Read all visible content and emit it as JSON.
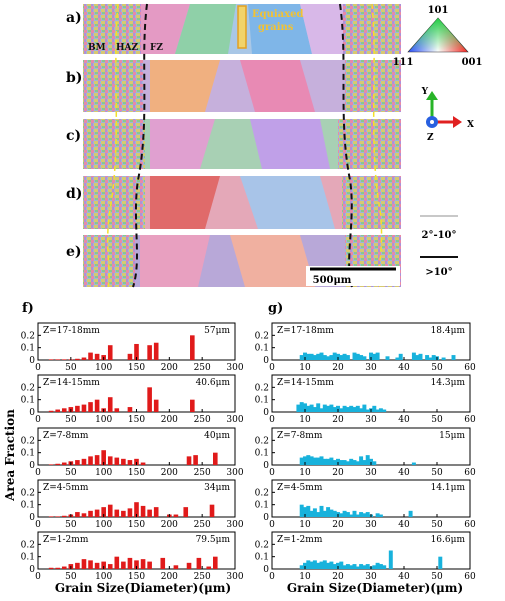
{
  "top_panel": {
    "panel_labels": [
      "a)",
      "b)",
      "c)",
      "d)",
      "e)"
    ],
    "zone_labels": [
      "BM",
      "HAZ",
      "FZ"
    ],
    "equiaxed_label": [
      "Equiaxed",
      "grains"
    ],
    "ipf_legend": {
      "top": "101",
      "left": "111",
      "right": "001"
    },
    "axes": {
      "y": "Y",
      "x": "X",
      "z": "Z"
    },
    "boundary_legend": [
      {
        "label": "2°-10°",
        "color": "#c8c8c8"
      },
      {
        "label": ">10°",
        "color": "#111111"
      }
    ],
    "scale_bar": "500μm"
  },
  "y_axis_title": "Area Fraction",
  "x_axis_title": "Grain Size(Diameter)(μm)",
  "colors": {
    "left_bars": "#e01a1a",
    "right_bars": "#18b2dc",
    "frame": "#000000"
  },
  "chart_data": [
    {
      "type": "bar",
      "title": "f)",
      "xlabel": "Grain Size(Diameter)(μm)",
      "ylabel": "Area Fraction",
      "xlim": [
        0,
        300
      ],
      "ylim": [
        0,
        0.3
      ],
      "xticks": [
        0,
        50,
        100,
        150,
        200,
        250,
        300
      ],
      "yticks": [
        "0",
        "0.1",
        "0.2"
      ],
      "bar_width": 7,
      "series": [
        {
          "name": "Z=17-18mm",
          "annotation": "57μm",
          "x": [
            20,
            30,
            40,
            50,
            60,
            70,
            80,
            90,
            100,
            110,
            140,
            150,
            170,
            180,
            235
          ],
          "values": [
            0.005,
            0.005,
            0.005,
            0.005,
            0.01,
            0.02,
            0.06,
            0.05,
            0.04,
            0.12,
            0.05,
            0.13,
            0.12,
            0.14,
            0.2
          ]
        },
        {
          "name": "Z=14-15mm",
          "annotation": "40.6μm",
          "x": [
            20,
            30,
            40,
            50,
            60,
            70,
            80,
            90,
            100,
            110,
            120,
            140,
            170,
            180,
            235
          ],
          "values": [
            0.01,
            0.02,
            0.03,
            0.04,
            0.05,
            0.06,
            0.08,
            0.1,
            0.03,
            0.12,
            0.03,
            0.04,
            0.2,
            0.1,
            0.1
          ]
        },
        {
          "name": "Z=7-8mm",
          "annotation": "40μm",
          "x": [
            20,
            30,
            40,
            50,
            60,
            70,
            80,
            90,
            100,
            110,
            120,
            130,
            140,
            150,
            160,
            230,
            240,
            270
          ],
          "values": [
            0.005,
            0.01,
            0.02,
            0.03,
            0.04,
            0.05,
            0.07,
            0.08,
            0.12,
            0.07,
            0.06,
            0.05,
            0.04,
            0.05,
            0.02,
            0.07,
            0.08,
            0.1
          ]
        },
        {
          "name": "Z=4-5mm",
          "annotation": "34μm",
          "x": [
            20,
            30,
            40,
            50,
            60,
            70,
            80,
            90,
            100,
            110,
            120,
            130,
            140,
            150,
            160,
            170,
            180,
            200,
            210,
            225,
            265
          ],
          "values": [
            0.005,
            0.005,
            0.01,
            0.02,
            0.04,
            0.03,
            0.05,
            0.06,
            0.08,
            0.1,
            0.06,
            0.05,
            0.07,
            0.12,
            0.09,
            0.06,
            0.08,
            0.02,
            0.02,
            0.08,
            0.1
          ]
        },
        {
          "name": "Z=1-2mm",
          "annotation": "79.5μm",
          "x": [
            20,
            30,
            40,
            50,
            60,
            70,
            80,
            90,
            100,
            110,
            120,
            130,
            140,
            150,
            160,
            170,
            190,
            210,
            230,
            245,
            260,
            270
          ],
          "values": [
            0.01,
            0.01,
            0.02,
            0.04,
            0.05,
            0.08,
            0.07,
            0.05,
            0.06,
            0.04,
            0.1,
            0.06,
            0.09,
            0.07,
            0.08,
            0.06,
            0.09,
            0.03,
            0.05,
            0.09,
            0.02,
            0.1
          ]
        }
      ]
    },
    {
      "type": "bar",
      "title": "g)",
      "xlabel": "Grain Size(Diameter)(μm)",
      "ylabel": "Area Fraction",
      "xlim": [
        0,
        60
      ],
      "ylim": [
        0,
        0.3
      ],
      "xticks": [
        0,
        10,
        20,
        30,
        40,
        50,
        60
      ],
      "yticks": [
        "0",
        "0.1",
        "0.2"
      ],
      "bar_width": 1.2,
      "series": [
        {
          "name": "Z=17-18mm",
          "annotation": "18.4μm",
          "x": [
            9,
            10,
            11,
            12,
            13,
            14,
            15,
            16,
            17,
            18,
            19,
            20,
            21,
            22,
            23,
            25,
            26,
            27,
            28,
            30,
            31,
            32,
            35,
            38,
            39,
            43,
            44,
            45,
            47,
            48,
            49,
            50,
            52,
            55
          ],
          "values": [
            0.04,
            0.06,
            0.05,
            0.05,
            0.04,
            0.05,
            0.06,
            0.04,
            0.03,
            0.04,
            0.06,
            0.05,
            0.04,
            0.05,
            0.04,
            0.06,
            0.05,
            0.04,
            0.03,
            0.06,
            0.05,
            0.06,
            0.03,
            0.02,
            0.05,
            0.06,
            0.04,
            0.05,
            0.04,
            0.02,
            0.04,
            0.03,
            0.02,
            0.04
          ]
        },
        {
          "name": "Z=14-15mm",
          "annotation": "14.3μm",
          "x": [
            8,
            9,
            10,
            11,
            12,
            13,
            14,
            15,
            16,
            17,
            18,
            19,
            20,
            21,
            22,
            23,
            24,
            25,
            26,
            27,
            28,
            29,
            30,
            31,
            32,
            33,
            34
          ],
          "values": [
            0.06,
            0.08,
            0.07,
            0.05,
            0.06,
            0.04,
            0.07,
            0.03,
            0.06,
            0.05,
            0.06,
            0.04,
            0.05,
            0.03,
            0.05,
            0.04,
            0.05,
            0.04,
            0.05,
            0.03,
            0.06,
            0.02,
            0.03,
            0.05,
            0.02,
            0.03,
            0.02
          ]
        },
        {
          "name": "Z=7-8mm",
          "annotation": "15μm",
          "x": [
            9,
            10,
            11,
            12,
            13,
            14,
            15,
            16,
            17,
            18,
            19,
            20,
            21,
            22,
            23,
            24,
            25,
            26,
            27,
            28,
            29,
            30,
            31,
            43
          ],
          "values": [
            0.06,
            0.07,
            0.08,
            0.07,
            0.06,
            0.06,
            0.07,
            0.05,
            0.05,
            0.06,
            0.04,
            0.05,
            0.04,
            0.04,
            0.03,
            0.05,
            0.04,
            0.03,
            0.07,
            0.04,
            0.08,
            0.05,
            0.03,
            0.02
          ]
        },
        {
          "name": "Z=4-5mm",
          "annotation": "14.1μm",
          "x": [
            9,
            10,
            11,
            12,
            13,
            14,
            15,
            16,
            17,
            18,
            19,
            20,
            21,
            22,
            23,
            24,
            25,
            26,
            27,
            28,
            29,
            30,
            32,
            33,
            42
          ],
          "values": [
            0.1,
            0.08,
            0.09,
            0.05,
            0.07,
            0.04,
            0.09,
            0.05,
            0.08,
            0.06,
            0.05,
            0.04,
            0.03,
            0.05,
            0.04,
            0.02,
            0.05,
            0.02,
            0.04,
            0.03,
            0.04,
            0.02,
            0.03,
            0.02,
            0.05
          ]
        },
        {
          "name": "Z=1-2mm",
          "annotation": "16.6μm",
          "x": [
            9,
            10,
            11,
            12,
            13,
            14,
            15,
            16,
            17,
            18,
            19,
            20,
            21,
            22,
            23,
            24,
            25,
            26,
            27,
            28,
            29,
            30,
            31,
            32,
            33,
            34,
            36,
            51
          ],
          "values": [
            0.03,
            0.05,
            0.07,
            0.06,
            0.07,
            0.05,
            0.06,
            0.07,
            0.05,
            0.06,
            0.04,
            0.05,
            0.06,
            0.03,
            0.04,
            0.03,
            0.04,
            0.02,
            0.04,
            0.03,
            0.04,
            0.02,
            0.03,
            0.05,
            0.04,
            0.03,
            0.15,
            0.1
          ]
        }
      ]
    }
  ]
}
